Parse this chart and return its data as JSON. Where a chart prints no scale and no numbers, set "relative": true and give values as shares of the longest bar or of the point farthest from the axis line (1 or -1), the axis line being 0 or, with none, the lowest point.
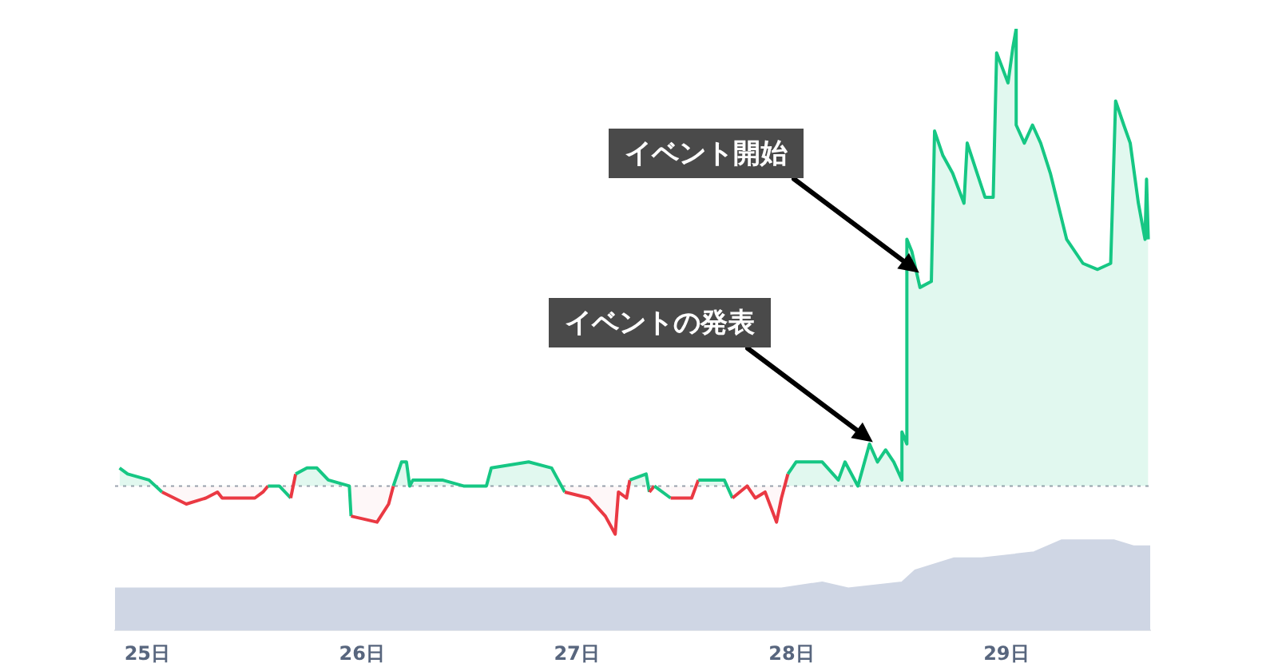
{
  "chart_data": {
    "type": "area",
    "relative": true,
    "xlim": [
      24.85,
      29.67
    ],
    "xticks": [
      {
        "value": 25,
        "label": "25日"
      },
      {
        "value": 26,
        "label": "26日"
      },
      {
        "value": 27,
        "label": "27日"
      },
      {
        "value": 28,
        "label": "28日"
      },
      {
        "value": 29,
        "label": "29日"
      }
    ],
    "legend": false,
    "grid": false,
    "tick_labels": "x",
    "marker": "none",
    "series": [
      {
        "color": "#16c784",
        "x": [
          24.871,
          24.909,
          25.008,
          25.069,
          25.182,
          25.273,
          25.327,
          25.349,
          25.365,
          25.463,
          25.501,
          25.539,
          25.562,
          25.615,
          25.668,
          25.691,
          25.744,
          25.79,
          25.843,
          25.941,
          25.949,
          26.07,
          26.124,
          26.146,
          26.184,
          26.207,
          26.222,
          26.237,
          26.374,
          26.473,
          26.579,
          26.602,
          26.776,
          26.883,
          26.944,
          27.057,
          27.133,
          27.179,
          27.194,
          27.232,
          27.247,
          27.323,
          27.338,
          27.361,
          27.437,
          27.535,
          27.566,
          27.687,
          27.725,
          27.793,
          27.831,
          27.877,
          27.93,
          27.953,
          27.983,
          28.021,
          28.067,
          28.143,
          28.218,
          28.249,
          28.309,
          28.363,
          28.4,
          28.438,
          28.476,
          28.514,
          28.514,
          28.537,
          28.537,
          28.56,
          28.598,
          28.651,
          28.666,
          28.704,
          28.75,
          28.803,
          28.818,
          28.864,
          28.901,
          28.939,
          28.955,
          29.008,
          29.031,
          29.046,
          29.046,
          29.084,
          29.122,
          29.16,
          29.205,
          29.281,
          29.357,
          29.425,
          29.486,
          29.509,
          29.547,
          29.577,
          29.615,
          29.646,
          29.653,
          29.661
        ],
        "values": [
          0.27,
          0.26,
          0.25,
          0.23,
          0.21,
          0.22,
          0.23,
          0.22,
          0.22,
          0.22,
          0.22,
          0.23,
          0.24,
          0.24,
          0.22,
          0.26,
          0.27,
          0.27,
          0.25,
          0.24,
          0.19,
          0.18,
          0.21,
          0.24,
          0.28,
          0.28,
          0.24,
          0.25,
          0.25,
          0.24,
          0.24,
          0.27,
          0.28,
          0.27,
          0.23,
          0.22,
          0.19,
          0.16,
          0.23,
          0.22,
          0.25,
          0.26,
          0.23,
          0.24,
          0.22,
          0.22,
          0.25,
          0.25,
          0.22,
          0.24,
          0.22,
          0.23,
          0.18,
          0.22,
          0.26,
          0.28,
          0.28,
          0.28,
          0.25,
          0.28,
          0.24,
          0.31,
          0.28,
          0.3,
          0.28,
          0.25,
          0.33,
          0.31,
          0.65,
          0.63,
          0.57,
          0.58,
          0.83,
          0.79,
          0.76,
          0.71,
          0.81,
          0.76,
          0.72,
          0.72,
          0.96,
          0.91,
          0.97,
          1,
          0.84,
          0.81,
          0.84,
          0.81,
          0.76,
          0.65,
          0.61,
          0.6,
          0.61,
          0.88,
          0.84,
          0.81,
          0.71,
          0.65,
          0.75,
          0.65
        ],
        "colors": [
          "#16c784",
          "#16c784",
          "#16c784",
          "#ea3943",
          "#ea3943",
          "#ea3943",
          "#ea3943",
          "#ea3943",
          "#ea3943",
          "#ea3943",
          "#ea3943",
          "#ea3943",
          "#16c784",
          "#16c784",
          "#ea3943",
          "#16c784",
          "#16c784",
          "#16c784",
          "#16c784",
          "#16c784",
          "#ea3943",
          "#ea3943",
          "#ea3943",
          "#16c784",
          "#16c784",
          "#16c784",
          "#16c784",
          "#16c784",
          "#16c784",
          "#16c784",
          "#16c784",
          "#16c784",
          "#16c784",
          "#16c784",
          "#ea3943",
          "#ea3943",
          "#ea3943",
          "#ea3943",
          "#ea3943",
          "#ea3943",
          "#16c784",
          "#16c784",
          "#ea3943",
          "#16c784",
          "#ea3943",
          "#ea3943",
          "#16c784",
          "#16c784",
          "#ea3943",
          "#ea3943",
          "#ea3943",
          "#ea3943",
          "#ea3943",
          "#ea3943",
          "#16c784",
          "#16c784",
          "#16c784",
          "#16c784",
          "#16c784",
          "#16c784",
          "#16c784",
          "#16c784",
          "#16c784",
          "#16c784",
          "#16c784",
          "#16c784",
          "#16c784",
          "#16c784",
          "#16c784",
          "#16c784",
          "#16c784",
          "#16c784",
          "#16c784",
          "#16c784",
          "#16c784",
          "#16c784",
          "#16c784",
          "#16c784",
          "#16c784",
          "#16c784",
          "#16c784",
          "#16c784",
          "#16c784",
          "#16c784",
          "#16c784",
          "#16c784",
          "#16c784",
          "#16c784",
          "#16c784",
          "#16c784",
          "#16c784",
          "#16c784",
          "#16c784",
          "#16c784",
          "#16c784",
          "#16c784",
          "#16c784",
          "#16c784",
          "#16c784",
          "#16c784"
        ]
      },
      {
        "color": "#cfd6e4",
        "x": [
          24.85,
          25.319,
          25.782,
          26.253,
          26.807,
          27.179,
          27.642,
          27.953,
          28.143,
          28.264,
          28.514,
          28.575,
          28.757,
          28.886,
          29.129,
          29.258,
          29.501,
          29.592,
          29.67
        ],
        "values": [
          0.07,
          0.07,
          0.07,
          0.07,
          0.07,
          0.07,
          0.07,
          0.07,
          0.08,
          0.07,
          0.08,
          0.1,
          0.12,
          0.12,
          0.13,
          0.15,
          0.15,
          0.14,
          0.14
        ]
      }
    ],
    "ref_lines": [
      {
        "axis": "y",
        "value": 0.24,
        "color": "#9ca3af",
        "line_style": "dotted"
      }
    ],
    "annotations": [
      "イベントの発表",
      "イベント開始"
    ]
  }
}
